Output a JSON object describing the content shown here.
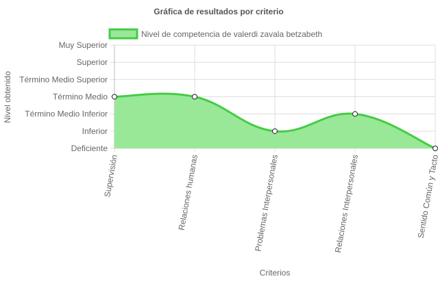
{
  "chart_data": {
    "type": "area",
    "title": "Gráfica de resultados por criterio",
    "xlabel": "Criterios",
    "ylabel": "Nivel obtenido",
    "categories": [
      "Supervisión",
      "Relaciones humanas",
      "Problemas Interpersonales",
      "Relaciones Interpersonales",
      "Sentido Común y Tacto"
    ],
    "y_levels": [
      "Deficiente",
      "Inferior",
      "Término Medio Inferior",
      "Término Medio",
      "Término Medio Superior",
      "Superior",
      "Muy Superior"
    ],
    "series": [
      {
        "name": "Nivel de competencia de valerdi zavala betzabeth",
        "values": [
          3,
          3,
          1,
          2,
          0
        ]
      }
    ],
    "ylim": [
      0,
      6
    ],
    "grid": true,
    "legend_position": "top",
    "colors": {
      "line": "#44cc44",
      "fill": "#98e898",
      "point_fill": "#ffffff",
      "point_stroke": "#222222",
      "grid": "#dddddd"
    }
  }
}
